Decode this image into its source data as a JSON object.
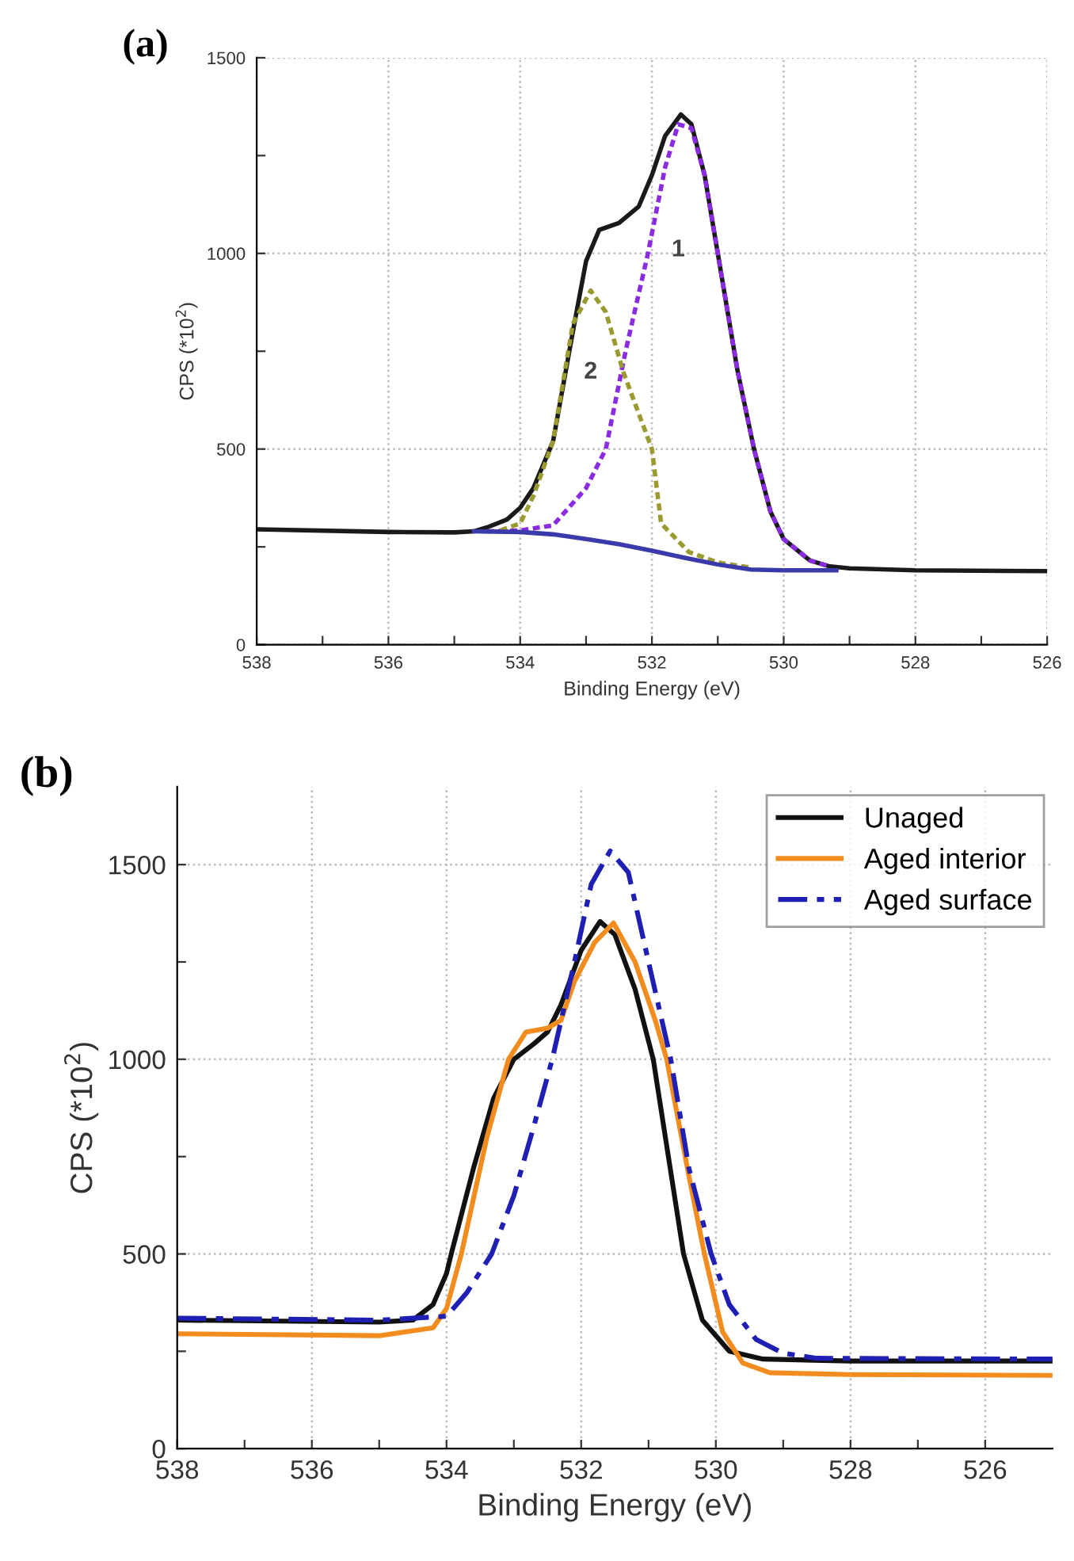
{
  "chart_data": [
    {
      "type": "line",
      "title": "(a)",
      "xlabel": "Binding Energy (eV)",
      "ylabel": "CPS (*10$^{2}$)",
      "xlim": [
        538,
        526
      ],
      "ylim": [
        0,
        1500
      ],
      "xticks": [
        538,
        {
          "value": 537,
          "label": null
        },
        536,
        {
          "value": 535,
          "label": null
        },
        534,
        {
          "value": 533,
          "label": null
        },
        532,
        {
          "value": 531,
          "label": null
        },
        530,
        {
          "value": 529,
          "label": null
        },
        528,
        {
          "value": 527,
          "label": null
        },
        526
      ],
      "yticks": [
        0,
        {
          "value": 250,
          "label": null
        },
        500,
        {
          "value": 750,
          "label": null
        },
        1000,
        {
          "value": 1250,
          "label": null
        },
        1500
      ],
      "grid": true,
      "marker": "none",
      "legend": false,
      "series": [
        {
          "color": "#1a1a1a",
          "line_style": "solid",
          "x": [
            538,
            536,
            535,
            534.7,
            534.5,
            534.2,
            534,
            533.8,
            533.5,
            533.2,
            533,
            532.8,
            532.5,
            532.2,
            532,
            531.8,
            531.56,
            531.4,
            531.2,
            531,
            530.7,
            530.45,
            530.2,
            530,
            529.6,
            529.3,
            529,
            528,
            526
          ],
          "values": [
            295,
            288,
            287,
            290,
            300,
            320,
            350,
            400,
            520,
            800,
            980,
            1060,
            1078,
            1120,
            1200,
            1300,
            1355,
            1330,
            1200,
            1000,
            700,
            500,
            340,
            270,
            215,
            200,
            195,
            190,
            188
          ]
        },
        {
          "color": "#8a2be2",
          "line_style": "dashed",
          "x": [
            534.5,
            534,
            533.5,
            533,
            532.7,
            532.4,
            532.06,
            531.8,
            531.6,
            531.4,
            531.2,
            531,
            530.7,
            530.45,
            530.2,
            530,
            529.6,
            529.3
          ],
          "values": [
            290,
            292,
            305,
            400,
            500,
            750,
            1000,
            1220,
            1330,
            1320,
            1200,
            1000,
            700,
            500,
            340,
            270,
            215,
            200
          ]
        },
        {
          "color": "#9a9a30",
          "line_style": "dashed",
          "x": [
            534.3,
            534,
            533.8,
            533.5,
            533.2,
            532.93,
            532.7,
            532.43,
            532,
            531.86,
            531.44,
            531,
            530.5
          ],
          "values": [
            292,
            310,
            380,
            520,
            820,
            905,
            850,
            695,
            500,
            310,
            237,
            210,
            197
          ]
        },
        {
          "color": "#3a3aaa",
          "line_style": "solid",
          "x": [
            534.7,
            534,
            533.5,
            533,
            532.5,
            532,
            531.5,
            531,
            530.5,
            530,
            529.2
          ],
          "values": [
            290,
            288,
            282,
            270,
            257,
            240,
            222,
            205,
            192,
            190,
            190
          ]
        }
      ],
      "annotations": [
        "1",
        "2"
      ]
    },
    {
      "type": "line",
      "title": "(b)",
      "xlabel": "Binding Energy (eV)",
      "ylabel": "CPS (*10$^{2}$)",
      "xlim": [
        538,
        525
      ],
      "ylim": [
        0,
        1700
      ],
      "xticks": [
        538,
        {
          "value": 537,
          "label": null
        },
        536,
        {
          "value": 535,
          "label": null
        },
        534,
        {
          "value": 533,
          "label": null
        },
        532,
        {
          "value": 531,
          "label": null
        },
        530,
        {
          "value": 529,
          "label": null
        },
        528,
        {
          "value": 527,
          "label": null
        },
        526
      ],
      "yticks": [
        0,
        {
          "value": 250,
          "label": null
        },
        500,
        {
          "value": 750,
          "label": null
        },
        1000,
        {
          "value": 1250,
          "label": null
        },
        1500
      ],
      "grid": true,
      "marker": "none",
      "legend": "top right",
      "series": [
        {
          "name": "Unaged",
          "color": "#111111",
          "line_style": "solid",
          "x": [
            538,
            535,
            534.5,
            534.2,
            534,
            533.93,
            533.6,
            533.3,
            533,
            532.7,
            532.5,
            532.3,
            532,
            531.72,
            531.5,
            531.2,
            530.93,
            530.48,
            530.2,
            529.8,
            529.3,
            528,
            525
          ],
          "values": [
            330,
            325,
            330,
            370,
            450,
            500,
            720,
            900,
            1000,
            1040,
            1070,
            1140,
            1280,
            1354,
            1320,
            1180,
            1000,
            500,
            330,
            250,
            230,
            225,
            225
          ]
        },
        {
          "name": "Aged interior",
          "color": "#f28c1e",
          "line_style": "solid",
          "x": [
            538,
            535,
            534.2,
            534,
            533.78,
            533.4,
            533.08,
            532.82,
            532.5,
            532.3,
            532.1,
            531.8,
            531.52,
            531.2,
            530.9,
            530.73,
            530.4,
            530.17,
            529.9,
            529.6,
            529.2,
            528,
            525
          ],
          "values": [
            295,
            290,
            310,
            360,
            500,
            800,
            1000,
            1070,
            1080,
            1100,
            1200,
            1300,
            1350,
            1250,
            1100,
            1000,
            700,
            500,
            300,
            220,
            195,
            190,
            188
          ]
        },
        {
          "name": "Aged surface",
          "color": "#1f1fb4",
          "line_style": "dashdot",
          "x": [
            538,
            535,
            534,
            533.7,
            533.33,
            533,
            532.7,
            532.43,
            532.1,
            531.85,
            531.57,
            531.3,
            531,
            530.67,
            530.4,
            530.07,
            529.8,
            529.4,
            529,
            528.5,
            525
          ],
          "values": [
            335,
            330,
            340,
            400,
            500,
            650,
            830,
            1000,
            1250,
            1450,
            1535,
            1480,
            1250,
            1000,
            720,
            500,
            370,
            280,
            245,
            232,
            230
          ]
        }
      ]
    }
  ]
}
